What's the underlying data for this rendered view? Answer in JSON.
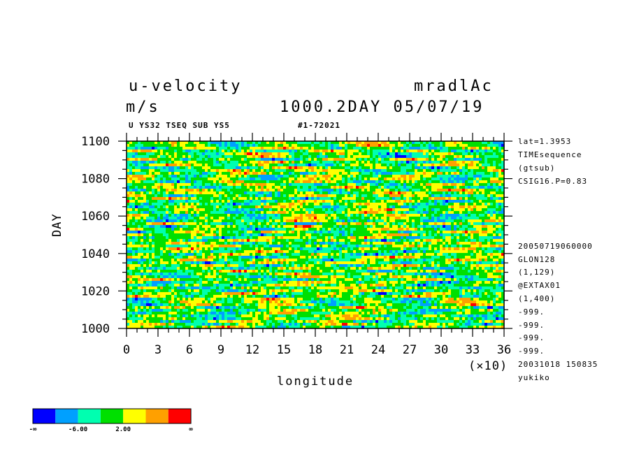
{
  "header": {
    "variable": "u-velocity",
    "units": "m/s",
    "run": "mradlAc",
    "time": "1000.2DAY 05/07/19",
    "sub_left": "U YS32 TSEQ SUB YS5",
    "sub_right": "#1-72021"
  },
  "side_info": {
    "top": [
      "lat=1.3953",
      "TIMEsequence",
      "(gtsub)",
      "CSIG16.P=0.83"
    ],
    "bottom": [
      "20050719060000",
      "GLON128",
      "(1,129)",
      "@EXTAX01",
      "(1,400)",
      "-999.",
      "-999.",
      "-999.",
      "-999.",
      "20031018 150835",
      "yukiko"
    ]
  },
  "chart_data": {
    "type": "heatmap",
    "title": "u-velocity",
    "xlabel": "longitude",
    "ylabel": "DAY",
    "x_scale_note": "(×10)",
    "xlim": [
      0,
      36
    ],
    "ylim": [
      1000,
      1100
    ],
    "x_ticks": [
      0,
      3,
      6,
      9,
      12,
      15,
      18,
      21,
      24,
      27,
      30,
      33,
      36
    ],
    "y_ticks": [
      1000,
      1020,
      1040,
      1060,
      1080,
      1100
    ],
    "colorbar": {
      "colors": [
        "#0000ff",
        "#00a0ff",
        "#00ffb0",
        "#00e000",
        "#ffff00",
        "#ffa000",
        "#ff0000"
      ],
      "labels": [
        "-∞",
        "-6.00",
        "2.00",
        "∞"
      ]
    }
  }
}
